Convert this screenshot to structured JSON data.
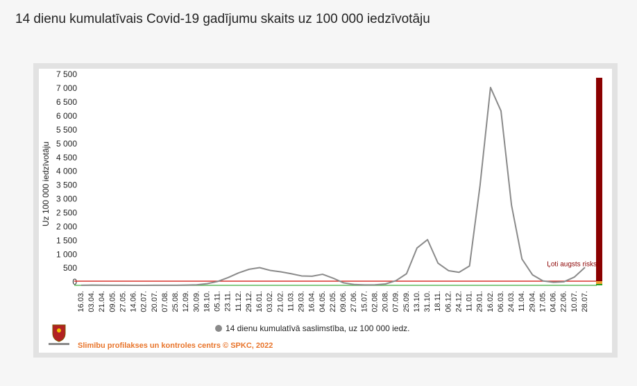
{
  "chart_data": {
    "type": "line",
    "title": "14 dienu kumulatīvais Covid-19 gadījumu skaits uz 100 000 iedzīvotāju",
    "y_label": "Uz 100 000 iedzīvotāju",
    "footer": "Slimību profilakses un kontroles centrs © SPKC, 2022",
    "annotation": "Ļoti augsts risks",
    "categories": [
      "16.03.",
      "03.04.",
      "21.04.",
      "09.05.",
      "27.05.",
      "14.06.",
      "02.07.",
      "20.07.",
      "07.08.",
      "25.08.",
      "12.09.",
      "30.09.",
      "18.10.",
      "05.11.",
      "23.11.",
      "11.12.",
      "29.12.",
      "16.01.",
      "03.02.",
      "21.02.",
      "11.03.",
      "29.03.",
      "16.04.",
      "04.05.",
      "22.05.",
      "09.06.",
      "27.06.",
      "15.07.",
      "02.08.",
      "20.08.",
      "07.09.",
      "25.09.",
      "13.10.",
      "31.10.",
      "18.11.",
      "06.12.",
      "24.12.",
      "11.01.",
      "29.01.",
      "16.02.",
      "06.03.",
      "24.03.",
      "11.04.",
      "29.04.",
      "17.05.",
      "04.06.",
      "22.06.",
      "10.07.",
      "28.07."
    ],
    "series": [
      {
        "name": "14 dienu kumulatīvā saslimstība, uz 100 000 iedz.",
        "color": "#8a8a8a",
        "values": [
          2,
          8,
          6,
          4,
          2,
          1,
          1,
          2,
          2,
          4,
          8,
          20,
          60,
          140,
          280,
          450,
          580,
          640,
          540,
          490,
          420,
          340,
          330,
          400,
          260,
          90,
          30,
          15,
          20,
          50,
          170,
          420,
          1350,
          1650,
          800,
          530,
          470,
          700,
          3600,
          7150,
          6300,
          2900,
          950,
          380,
          160,
          110,
          130,
          300,
          650
        ]
      }
    ],
    "ylim": [
      0,
      7500
    ],
    "yticks": [
      0,
      500,
      {
        "value": 1000,
        "label": "1 000"
      },
      {
        "value": 1500,
        "label": "1 500"
      },
      {
        "value": 2000,
        "label": "2 000"
      },
      {
        "value": 2500,
        "label": "2 500"
      },
      {
        "value": 3000,
        "label": "3 000"
      },
      {
        "value": 3500,
        "label": "3 500"
      },
      {
        "value": 4000,
        "label": "4 000"
      },
      {
        "value": 4500,
        "label": "4 500"
      },
      {
        "value": 5000,
        "label": "5 000"
      },
      {
        "value": 5500,
        "label": "5 500"
      },
      {
        "value": 6000,
        "label": "6 000"
      },
      {
        "value": 6500,
        "label": "6 500"
      },
      {
        "value": 7000,
        "label": "7 000"
      },
      {
        "value": 7500,
        "label": "7 500"
      }
    ],
    "grid": false,
    "reference_lines": [
      {
        "value": 150,
        "color": "#d9322b"
      },
      {
        "value": 0,
        "color": "#5cb85c"
      }
    ],
    "risk_bands": [
      {
        "from": 150,
        "to": 7500,
        "color": "#8b0000"
      },
      {
        "from": 50,
        "to": 150,
        "color": "#f0a030"
      },
      {
        "from": 0,
        "to": 50,
        "color": "#1e9e1e"
      }
    ]
  }
}
